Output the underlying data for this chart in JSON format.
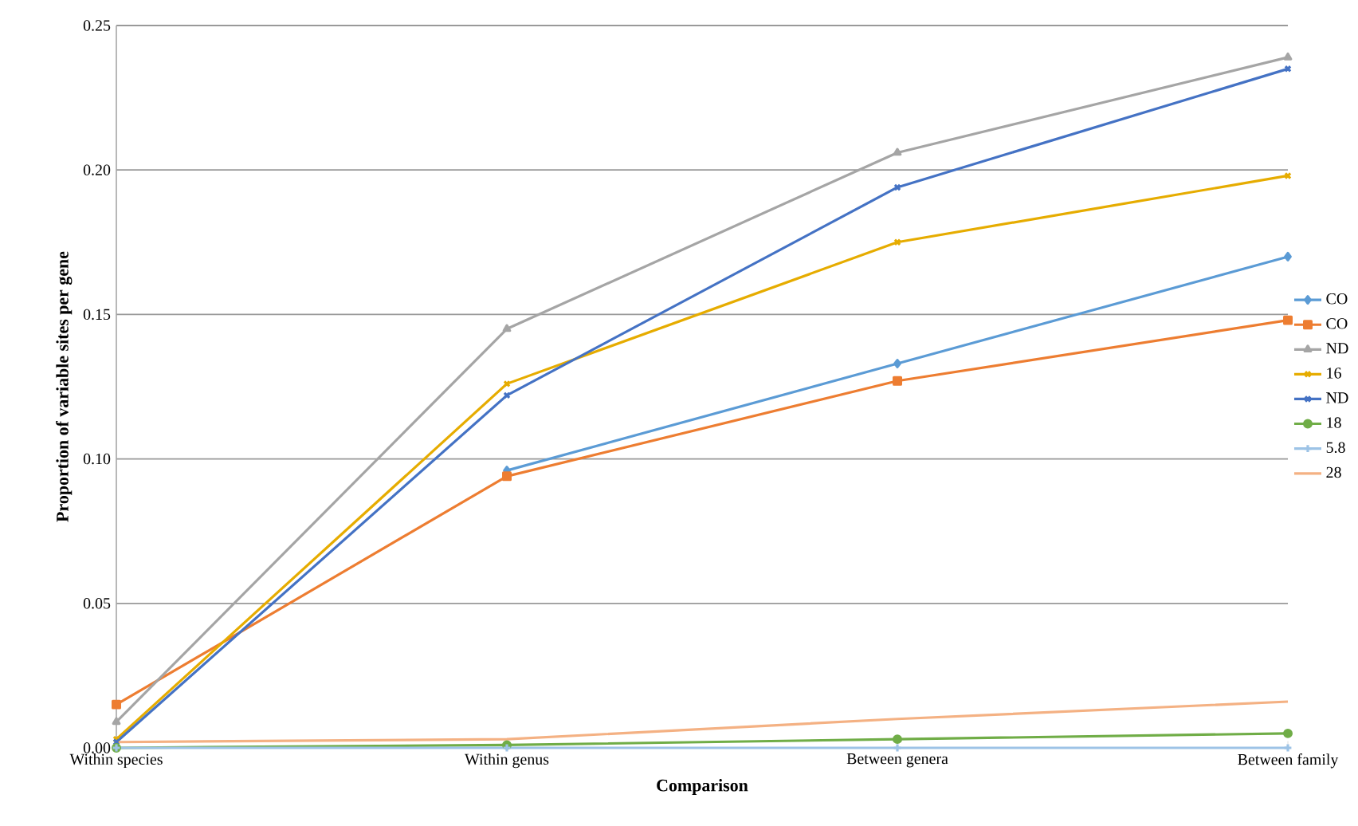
{
  "chart_data": {
    "type": "line",
    "xlabel": "Comparison",
    "ylabel": "Proportion of variable sites per gene",
    "categories": [
      "Within species",
      "Within genus",
      "Between genera",
      "Between family"
    ],
    "ylim": [
      0,
      0.25
    ],
    "yticks": [
      {
        "value": 0,
        "label": "0.00"
      },
      {
        "value": 0.05,
        "label": "0.05"
      },
      {
        "value": 0.1,
        "label": "0.10"
      },
      {
        "value": 0.15,
        "label": "0.15"
      },
      {
        "value": 0.2,
        "label": "0.20"
      },
      {
        "value": 0.25,
        "label": "0.25"
      }
    ],
    "grid": "y",
    "legend": "right",
    "series": [
      {
        "name": "CO",
        "color": "#5b9bd5",
        "marker": "diamond",
        "values": [
          null,
          0.096,
          0.133,
          0.17
        ]
      },
      {
        "name": "CO",
        "color": "#ed7d31",
        "marker": "square",
        "values": [
          0.015,
          0.094,
          0.127,
          0.148
        ]
      },
      {
        "name": "ND",
        "color": "#a5a5a5",
        "marker": "triangle",
        "values": [
          0.009,
          0.145,
          0.206,
          0.239
        ]
      },
      {
        "name": "16",
        "color": "#e6ac00",
        "marker": "cross",
        "values": [
          0.003,
          0.126,
          0.175,
          0.198
        ]
      },
      {
        "name": "ND",
        "color": "#4472c4",
        "marker": "cross",
        "values": [
          0.002,
          0.122,
          0.194,
          0.235
        ]
      },
      {
        "name": "18",
        "color": "#70ad47",
        "marker": "circle",
        "values": [
          0.0,
          0.001,
          0.003,
          0.005
        ]
      },
      {
        "name": "5.8",
        "color": "#9dc3e6",
        "marker": "plus",
        "values": [
          0.0,
          0.0,
          0.0,
          0.0
        ]
      },
      {
        "name": "28",
        "color": "#f4b183",
        "marker": "none",
        "values": [
          0.002,
          0.003,
          0.01,
          0.016
        ]
      }
    ]
  }
}
